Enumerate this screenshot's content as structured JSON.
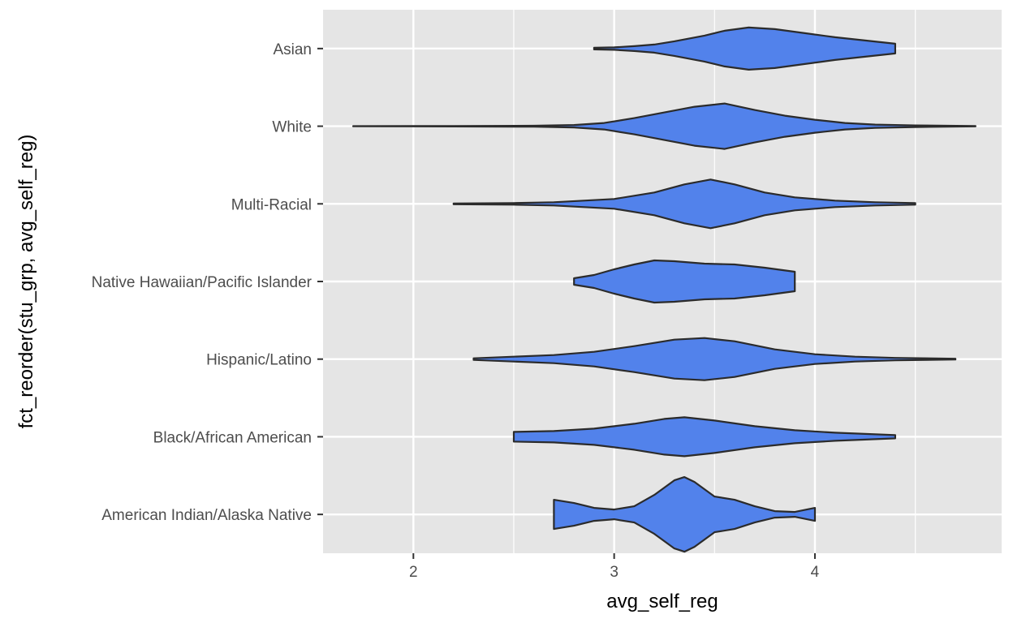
{
  "chart_data": {
    "type": "violin",
    "orientation": "horizontal",
    "xlabel": "avg_self_reg",
    "ylabel": "fct_reorder(stu_grp, avg_self_reg)",
    "xlim": [
      1.55,
      4.93
    ],
    "x_ticks": [
      2,
      3,
      4
    ],
    "x_minor_ticks": [
      2.5,
      3.5,
      4.5
    ],
    "grid": true,
    "fill_color": "#5282eb",
    "outline_color": "#2b2b2b",
    "panel_color": "#e5e5e5",
    "grid_color": "#ffffff",
    "categories": [
      "American Indian/Alaska Native",
      "Black/African American",
      "Hispanic/Latino",
      "Native Hawaiian/Pacific Islander",
      "Multi-Racial",
      "White",
      "Asian"
    ],
    "series": [
      {
        "category": "American Indian/Alaska Native",
        "min": 2.7,
        "max": 4.0,
        "density": [
          [
            2.7,
            0.18
          ],
          [
            2.8,
            0.14
          ],
          [
            2.9,
            0.08
          ],
          [
            3.0,
            0.06
          ],
          [
            3.1,
            0.1
          ],
          [
            3.2,
            0.24
          ],
          [
            3.3,
            0.42
          ],
          [
            3.35,
            0.46
          ],
          [
            3.4,
            0.4
          ],
          [
            3.5,
            0.22
          ],
          [
            3.6,
            0.18
          ],
          [
            3.7,
            0.1
          ],
          [
            3.8,
            0.04
          ],
          [
            3.9,
            0.03
          ],
          [
            4.0,
            0.08
          ]
        ]
      },
      {
        "category": "Black/African American",
        "min": 2.5,
        "max": 4.4,
        "density": [
          [
            2.5,
            0.06
          ],
          [
            2.7,
            0.07
          ],
          [
            2.9,
            0.1
          ],
          [
            3.1,
            0.16
          ],
          [
            3.25,
            0.22
          ],
          [
            3.35,
            0.24
          ],
          [
            3.5,
            0.2
          ],
          [
            3.7,
            0.13
          ],
          [
            3.9,
            0.08
          ],
          [
            4.1,
            0.05
          ],
          [
            4.3,
            0.03
          ],
          [
            4.4,
            0.02
          ]
        ]
      },
      {
        "category": "Hispanic/Latino",
        "min": 2.3,
        "max": 4.7,
        "density": [
          [
            2.3,
            0.01
          ],
          [
            2.5,
            0.03
          ],
          [
            2.7,
            0.05
          ],
          [
            2.9,
            0.09
          ],
          [
            3.1,
            0.16
          ],
          [
            3.3,
            0.24
          ],
          [
            3.45,
            0.26
          ],
          [
            3.6,
            0.22
          ],
          [
            3.8,
            0.12
          ],
          [
            4.0,
            0.06
          ],
          [
            4.2,
            0.03
          ],
          [
            4.4,
            0.015
          ],
          [
            4.7,
            0.005
          ]
        ]
      },
      {
        "category": "Native Hawaiian/Pacific Islander",
        "min": 2.8,
        "max": 3.9,
        "density": [
          [
            2.8,
            0.04
          ],
          [
            2.9,
            0.08
          ],
          [
            3.0,
            0.15
          ],
          [
            3.1,
            0.21
          ],
          [
            3.2,
            0.26
          ],
          [
            3.3,
            0.25
          ],
          [
            3.45,
            0.22
          ],
          [
            3.6,
            0.21
          ],
          [
            3.75,
            0.17
          ],
          [
            3.9,
            0.12
          ]
        ]
      },
      {
        "category": "Multi-Racial",
        "min": 2.2,
        "max": 4.5,
        "density": [
          [
            2.2,
            0.005
          ],
          [
            2.5,
            0.01
          ],
          [
            2.7,
            0.02
          ],
          [
            3.0,
            0.06
          ],
          [
            3.2,
            0.14
          ],
          [
            3.35,
            0.24
          ],
          [
            3.48,
            0.3
          ],
          [
            3.6,
            0.24
          ],
          [
            3.75,
            0.14
          ],
          [
            3.9,
            0.08
          ],
          [
            4.1,
            0.04
          ],
          [
            4.3,
            0.02
          ],
          [
            4.5,
            0.01
          ]
        ]
      },
      {
        "category": "White",
        "min": 1.7,
        "max": 4.8,
        "density": [
          [
            1.7,
            0.001
          ],
          [
            2.2,
            0.003
          ],
          [
            2.6,
            0.006
          ],
          [
            2.8,
            0.015
          ],
          [
            2.95,
            0.04
          ],
          [
            3.1,
            0.1
          ],
          [
            3.25,
            0.17
          ],
          [
            3.4,
            0.24
          ],
          [
            3.55,
            0.28
          ],
          [
            3.7,
            0.2
          ],
          [
            3.85,
            0.13
          ],
          [
            4.0,
            0.08
          ],
          [
            4.15,
            0.04
          ],
          [
            4.3,
            0.02
          ],
          [
            4.5,
            0.01
          ],
          [
            4.8,
            0.002
          ]
        ]
      },
      {
        "category": "Asian",
        "min": 2.9,
        "max": 4.4,
        "density": [
          [
            2.9,
            0.01
          ],
          [
            3.0,
            0.015
          ],
          [
            3.1,
            0.03
          ],
          [
            3.2,
            0.05
          ],
          [
            3.3,
            0.09
          ],
          [
            3.45,
            0.16
          ],
          [
            3.55,
            0.22
          ],
          [
            3.67,
            0.26
          ],
          [
            3.8,
            0.24
          ],
          [
            3.95,
            0.19
          ],
          [
            4.1,
            0.14
          ],
          [
            4.25,
            0.1
          ],
          [
            4.4,
            0.06
          ]
        ]
      }
    ]
  }
}
